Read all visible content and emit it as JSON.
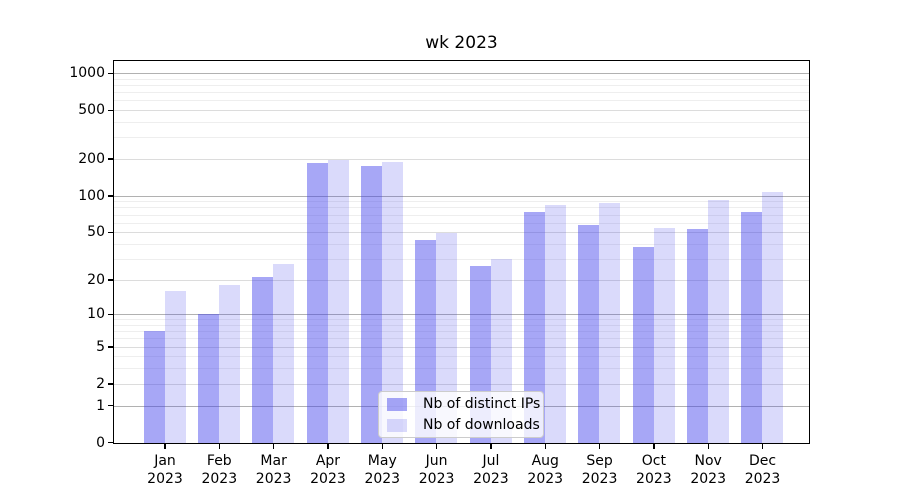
{
  "chart_data": {
    "type": "bar",
    "title": "wk 2023",
    "categories": [
      "Jan 2023",
      "Feb 2023",
      "Mar 2023",
      "Apr 2023",
      "May 2023",
      "Jun 2023",
      "Jul 2023",
      "Aug 2023",
      "Sep 2023",
      "Oct 2023",
      "Nov 2023",
      "Dec 2023"
    ],
    "series": [
      {
        "name": "Nb of distinct IPs",
        "color": "rgba(60,60,235,0.45)",
        "values": [
          7,
          10,
          21,
          186,
          176,
          43,
          26,
          73,
          57,
          38,
          53,
          74
        ]
      },
      {
        "name": "Nb of downloads",
        "color": "rgba(60,60,235,0.19)",
        "values": [
          16,
          18,
          27,
          197,
          190,
          49,
          30,
          84,
          87,
          54,
          92,
          107
        ]
      }
    ],
    "yscale": "log1p",
    "ylim": [
      0,
      1250
    ],
    "yticks": [
      0,
      1,
      2,
      5,
      10,
      20,
      50,
      100,
      200,
      500,
      1000
    ],
    "grid": {
      "major_lines": [
        1,
        10,
        100,
        1000
      ],
      "mid_lines": [
        2,
        5,
        20,
        50,
        200,
        500
      ],
      "minor_lines": [
        3,
        4,
        6,
        7,
        8,
        9,
        30,
        40,
        60,
        70,
        80,
        90,
        300,
        400,
        600,
        700,
        800,
        900
      ],
      "major_color": "#b1b1b1",
      "mid_color": "#dcdcdc",
      "minor_color": "#eeeeee"
    },
    "legend": {
      "position": "lower center-left"
    },
    "background": "#ffffff",
    "text_color": "#000000"
  }
}
